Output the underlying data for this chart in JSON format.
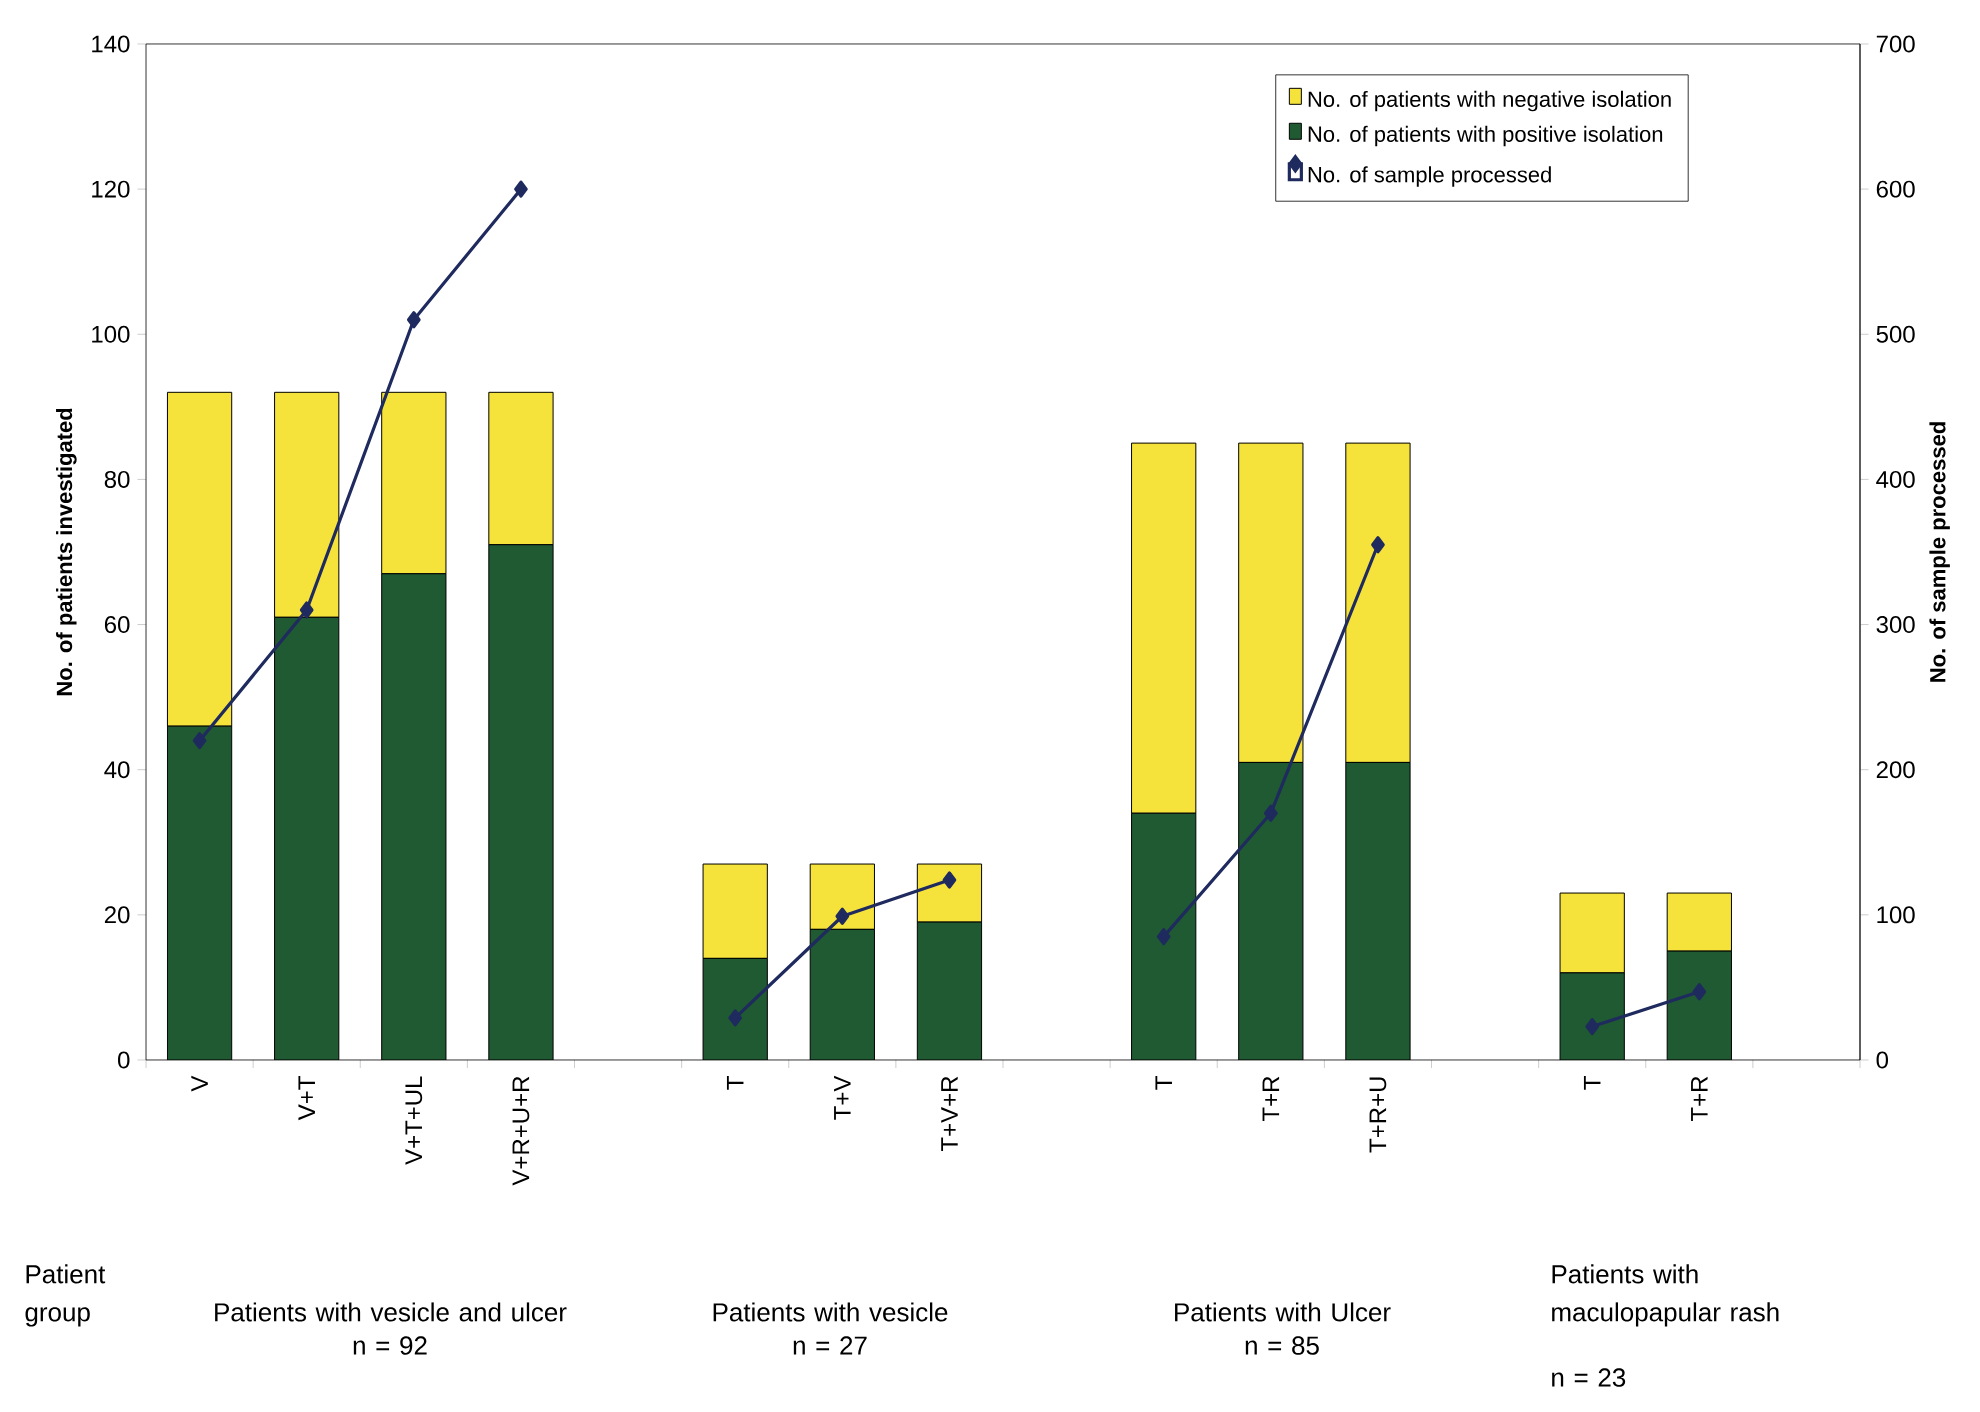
{
  "chart_data": {
    "type": "bar",
    "stacked": true,
    "categories": [
      "V",
      "V+T",
      "V+T+UL",
      "V+R+U+R",
      null,
      "T",
      "T+V",
      "T+V+R",
      null,
      "T",
      "T+R",
      "T+R+U",
      null,
      "T",
      "T+R",
      null
    ],
    "series": [
      {
        "name": "No. of patients with positive isolation",
        "color": "#1f5a32",
        "values": [
          46,
          61,
          67,
          71,
          null,
          14,
          18,
          19,
          null,
          34,
          41,
          41,
          null,
          12,
          15,
          null
        ]
      },
      {
        "name": "No. of patients with negative isolation",
        "color": "#f5e33b",
        "values": [
          46,
          31,
          25,
          21,
          null,
          13,
          9,
          8,
          null,
          51,
          44,
          44,
          null,
          11,
          8,
          null
        ]
      },
      {
        "name": "No. of sample processed",
        "type": "line",
        "axis": "y2",
        "color": "#1f2a5e",
        "marker": "diamond",
        "line_style": "solid",
        "values": [
          220,
          310,
          510,
          600,
          null,
          29,
          99,
          124,
          null,
          85,
          170,
          355,
          null,
          23,
          47,
          null
        ]
      }
    ],
    "ylabel": "No. of patients investigated",
    "y2label": "No. of sample processed",
    "ylim": [
      0,
      140
    ],
    "yticks": [
      0,
      20,
      40,
      60,
      80,
      100,
      120,
      140
    ],
    "y2lim": [
      0,
      700
    ],
    "y2ticks": [
      0,
      100,
      200,
      300,
      400,
      500,
      600,
      700
    ],
    "legend": "top right",
    "grid": false,
    "annotations": [
      "Patient group",
      "Patients with vesicle and ulcer",
      "n = 92",
      "Patients with vesicle",
      "n = 27",
      "Patients with Ulcer",
      "n = 85",
      "Patients with maculopapular rash",
      "n = 23"
    ]
  }
}
